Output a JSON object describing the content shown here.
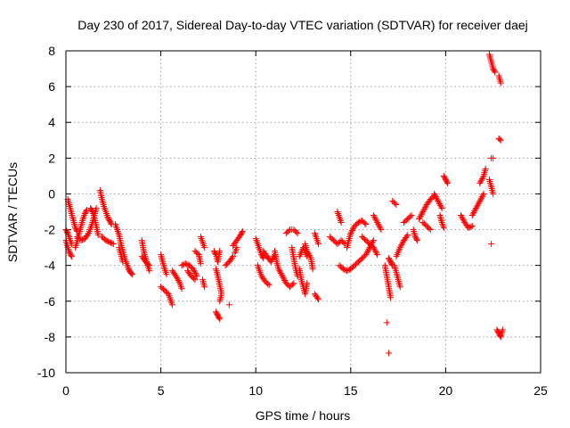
{
  "chart_data": {
    "type": "scatter",
    "title": "Day 230 of 2017, Sidereal Day-to-day VTEC variation (SDTVAR) for receiver daej",
    "xlabel": "GPS time / hours",
    "ylabel": "SDTVAR / TECUs",
    "xlim": [
      0,
      25
    ],
    "ylim": [
      -10,
      8
    ],
    "xticks": [
      0,
      5,
      10,
      15,
      20,
      25
    ],
    "yticks": [
      -10,
      -8,
      -6,
      -4,
      -2,
      0,
      2,
      4,
      6,
      8
    ],
    "grid": true,
    "marker": "+",
    "series": [
      {
        "name": "SDTVAR",
        "color": "#ff0000",
        "segments": [
          [
            0.0,
            -2.6,
            0.1,
            -3.0,
            0.2,
            -3.3,
            0.3,
            -3.5
          ],
          [
            0.1,
            -0.3,
            0.2,
            -0.7,
            0.3,
            -1.1,
            0.4,
            -1.5,
            0.5,
            -1.9,
            0.6,
            -2.1
          ],
          [
            0.0,
            -2.0,
            0.1,
            -2.2,
            0.2,
            -2.5,
            0.3,
            -2.8
          ],
          [
            0.5,
            -3.0,
            0.6,
            -2.6,
            0.7,
            -2.2,
            0.8,
            -1.8,
            0.9,
            -1.4,
            1.0,
            -1.1,
            1.1,
            -0.9
          ],
          [
            0.6,
            -2.4,
            0.8,
            -2.6,
            1.0,
            -2.5,
            1.2,
            -2.2,
            1.4,
            -1.6,
            1.5,
            -1.2,
            1.6,
            -0.8
          ],
          [
            1.3,
            -0.8,
            1.4,
            -1.0,
            1.5,
            -1.3,
            1.6,
            -1.8,
            1.7,
            -2.3
          ],
          [
            1.8,
            0.2,
            1.9,
            -0.3,
            2.0,
            -0.7,
            2.1,
            -1.0,
            2.2,
            -1.3,
            2.3,
            -1.5,
            2.4,
            -1.7
          ],
          [
            1.9,
            -2.4,
            2.1,
            -2.6,
            2.3,
            -2.7,
            2.5,
            -2.8
          ],
          [
            2.6,
            -1.7,
            2.7,
            -2.0,
            2.8,
            -2.3,
            2.9,
            -2.8,
            3.0,
            -3.2,
            3.1,
            -3.6,
            3.2,
            -3.9,
            3.3,
            -4.2
          ],
          [
            3.3,
            -4.2,
            3.4,
            -4.4,
            3.5,
            -4.5
          ],
          [
            2.8,
            -3.0,
            2.9,
            -3.4,
            3.0,
            -3.8
          ],
          [
            4.0,
            -2.6,
            4.1,
            -3.2,
            4.2,
            -3.6,
            4.3,
            -4.0,
            4.4,
            -4.3
          ],
          [
            4.0,
            -3.5,
            4.2,
            -3.8,
            4.4,
            -4.0
          ],
          [
            5.0,
            -3.4,
            5.1,
            -3.8,
            5.2,
            -4.2,
            5.3,
            -4.5
          ],
          [
            5.0,
            -5.2,
            5.2,
            -5.4,
            5.4,
            -5.6,
            5.5,
            -5.9,
            5.6,
            -6.2
          ],
          [
            5.6,
            -4.3,
            5.8,
            -4.6,
            6.0,
            -5.0,
            6.1,
            -5.3
          ],
          [
            6.1,
            -4.0,
            6.3,
            -3.9,
            6.5,
            -4.0,
            6.7,
            -4.2,
            6.9,
            -4.6
          ],
          [
            6.4,
            -4.3,
            6.6,
            -4.6,
            6.8,
            -4.8
          ],
          [
            6.8,
            -3.2,
            7.0,
            -3.4,
            7.1,
            -3.9
          ],
          [
            7.1,
            -2.4,
            7.2,
            -2.7,
            7.3,
            -3.0
          ],
          [
            7.2,
            -4.8,
            7.3,
            -5.2
          ],
          [
            7.8,
            -3.2,
            7.9,
            -3.4,
            8.0,
            -3.8,
            8.1,
            -3.2
          ],
          [
            7.9,
            -4.2,
            8.0,
            -4.6,
            8.1,
            -5.1,
            8.2,
            -5.6,
            8.1,
            -6.0
          ],
          [
            7.9,
            -6.6,
            8.0,
            -6.8,
            8.1,
            -7.0
          ],
          [
            8.6,
            -6.2
          ],
          [
            8.4,
            -4.0,
            8.6,
            -3.8,
            8.8,
            -3.5
          ],
          [
            8.8,
            -2.9,
            9.0,
            -2.6,
            9.2,
            -2.3,
            9.3,
            -2.1
          ],
          [
            8.9,
            -3.3,
            9.0,
            -3.0
          ],
          [
            10.0,
            -2.5,
            10.1,
            -2.8,
            10.2,
            -3.1,
            10.3,
            -3.4,
            10.4,
            -3.6
          ],
          [
            10.1,
            -4.0,
            10.2,
            -4.3,
            10.3,
            -4.6,
            10.5,
            -4.9,
            10.7,
            -5.1
          ],
          [
            10.4,
            -3.2,
            10.6,
            -3.5,
            10.8,
            -3.8,
            11.0,
            -3.4
          ],
          [
            11.0,
            -3.2,
            11.1,
            -3.8,
            11.2,
            -4.2,
            11.4,
            -4.6,
            11.6,
            -5.0,
            11.8,
            -5.2,
            12.0,
            -5.0
          ],
          [
            11.6,
            -2.2,
            11.8,
            -2.0,
            12.0,
            -2.0,
            12.2,
            -2.2
          ],
          [
            11.9,
            -3.0,
            12.0,
            -3.6,
            12.1,
            -4.2,
            12.2,
            -4.6
          ],
          [
            12.3,
            -4.2,
            12.4,
            -4.8,
            12.5,
            -5.2,
            12.6,
            -5.6,
            12.7,
            -5.0
          ],
          [
            12.3,
            -3.5,
            12.5,
            -3.0,
            12.7,
            -3.5
          ],
          [
            12.6,
            -2.8,
            12.7,
            -3.2,
            12.9,
            -3.6,
            13.0,
            -4.2
          ],
          [
            13.1,
            -2.2,
            13.2,
            -2.5,
            13.3,
            -2.8
          ],
          [
            13.1,
            -5.6,
            13.3,
            -5.9
          ],
          [
            13.9,
            -2.4,
            14.1,
            -2.6,
            14.3,
            -2.8,
            14.5,
            -2.6,
            14.7,
            -2.8
          ],
          [
            14.3,
            -1.0,
            14.4,
            -1.3,
            14.5,
            -1.6
          ],
          [
            14.8,
            -3.0,
            14.9,
            -2.6,
            15.0,
            -2.2,
            15.2,
            -1.8,
            15.4,
            -1.6,
            15.6,
            -1.5,
            15.8,
            -1.7
          ],
          [
            14.4,
            -4.0,
            14.6,
            -4.2,
            14.8,
            -4.3,
            15.0,
            -4.2,
            15.2,
            -4.0,
            15.4,
            -3.8,
            15.6,
            -3.6,
            15.8,
            -3.4,
            16.0,
            -3.0,
            16.2,
            -2.6
          ],
          [
            15.6,
            -2.4,
            15.8,
            -2.6,
            16.0,
            -2.8,
            16.2,
            -3.0,
            16.4,
            -3.4
          ],
          [
            16.2,
            -1.2,
            16.4,
            -1.6,
            16.6,
            -2.0
          ],
          [
            16.8,
            -4.0,
            16.9,
            -4.6,
            17.0,
            -5.2,
            17.1,
            -5.8
          ],
          [
            17.0,
            -3.6,
            17.1,
            -3.8,
            17.2,
            -4.0
          ],
          [
            16.9,
            -7.2
          ],
          [
            17.0,
            -8.9
          ],
          [
            17.2,
            -0.4,
            17.4,
            -0.6
          ],
          [
            17.3,
            -4.0,
            17.4,
            -4.4,
            17.5,
            -4.8,
            17.6,
            -5.2
          ],
          [
            17.4,
            -3.5,
            17.6,
            -3.0,
            17.8,
            -2.6,
            18.0,
            -2.3
          ],
          [
            17.8,
            -1.6,
            18.0,
            -1.4,
            18.2,
            -1.2
          ],
          [
            18.3,
            -2.0,
            18.4,
            -2.4,
            18.5,
            -2.6
          ],
          [
            18.6,
            -1.4,
            18.8,
            -1.0,
            19.0,
            -0.6,
            19.2,
            -0.3,
            19.4,
            -0.1
          ],
          [
            18.8,
            -1.6,
            19.0,
            -1.8,
            19.2,
            -2.0
          ],
          [
            19.4,
            0.0,
            19.6,
            -0.4,
            19.8,
            -0.8
          ],
          [
            19.7,
            -1.2,
            19.8,
            -1.6,
            19.9,
            -1.9
          ],
          [
            19.9,
            1.0,
            20.0,
            0.8,
            20.1,
            0.6
          ],
          [
            20.8,
            -1.2,
            21.0,
            -1.6,
            21.2,
            -1.9,
            21.4,
            -1.8
          ],
          [
            21.4,
            -1.2,
            21.6,
            -0.8,
            21.8,
            -0.4,
            22.0,
            0.0
          ],
          [
            21.8,
            0.6,
            22.0,
            1.0,
            22.1,
            1.4
          ],
          [
            22.3,
            0.8,
            22.4,
            0.4,
            22.5,
            0.0
          ],
          [
            22.3,
            7.8,
            22.4,
            7.4,
            22.5,
            7.0,
            22.6,
            6.8
          ],
          [
            22.8,
            6.6,
            22.9,
            6.2
          ],
          [
            22.4,
            2.0,
            22.5,
            2.0
          ],
          [
            22.8,
            3.1,
            22.9,
            3.0
          ],
          [
            22.4,
            -2.8
          ],
          [
            22.7,
            -7.6,
            22.8,
            -7.8,
            22.9,
            -8.0,
            23.0,
            -7.6
          ]
        ]
      }
    ]
  }
}
